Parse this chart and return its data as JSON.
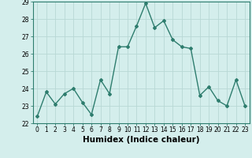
{
  "x": [
    0,
    1,
    2,
    3,
    4,
    5,
    6,
    7,
    8,
    9,
    10,
    11,
    12,
    13,
    14,
    15,
    16,
    17,
    18,
    19,
    20,
    21,
    22,
    23
  ],
  "y": [
    22.4,
    23.8,
    23.1,
    23.7,
    24.0,
    23.2,
    22.5,
    24.5,
    23.7,
    26.4,
    26.4,
    27.6,
    28.9,
    27.5,
    27.9,
    26.8,
    26.4,
    26.3,
    23.6,
    24.1,
    23.3,
    23.0,
    24.5,
    23.0
  ],
  "line_color": "#2e7d6e",
  "marker": "D",
  "marker_size": 2.0,
  "background_color": "#d4eeec",
  "grid_color": "#b8d8d5",
  "xlabel": "Humidex (Indice chaleur)",
  "ylim": [
    22,
    29
  ],
  "xlim": [
    -0.5,
    23.5
  ],
  "yticks": [
    22,
    23,
    24,
    25,
    26,
    27,
    28,
    29
  ],
  "xticks": [
    0,
    1,
    2,
    3,
    4,
    5,
    6,
    7,
    8,
    9,
    10,
    11,
    12,
    13,
    14,
    15,
    16,
    17,
    18,
    19,
    20,
    21,
    22,
    23
  ],
  "tick_fontsize": 5.5,
  "xlabel_fontsize": 7.5,
  "line_width": 1.0
}
